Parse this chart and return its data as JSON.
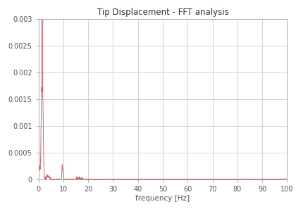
{
  "title": "Tip Displacement - FFT analysis",
  "xlabel": "frequency [Hz]",
  "ylabel": "",
  "xlim": [
    0,
    100
  ],
  "ylim": [
    0,
    0.003
  ],
  "xticks": [
    0,
    10,
    20,
    30,
    40,
    50,
    60,
    70,
    80,
    90,
    100
  ],
  "yticks": [
    0,
    0.0005,
    0.001,
    0.0015,
    0.002,
    0.0025,
    0.003
  ],
  "line_color": "#e8a0a0",
  "line_color2": "#cc3333",
  "background_color": "#ffffff",
  "plot_bg_color": "#ffffff",
  "grid_color": "#cccccc",
  "title_fontsize": 8.5,
  "label_fontsize": 7.5,
  "tick_fontsize": 7
}
